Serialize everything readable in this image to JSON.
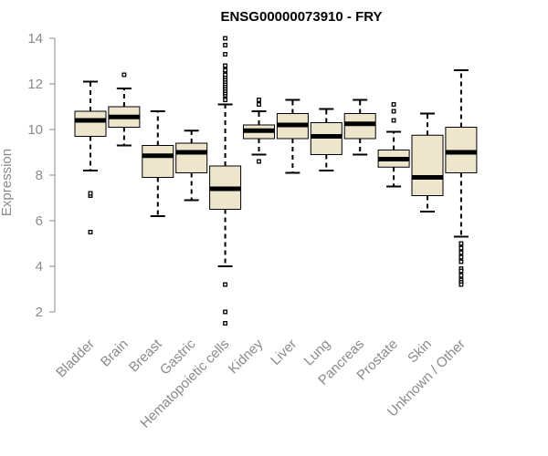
{
  "chart_data": {
    "type": "boxplot",
    "title": "ENSG00000073910 - FRY",
    "xlabel": "",
    "ylabel": "Expression",
    "ylim": [
      1.2,
      14.2
    ],
    "yticks": [
      2,
      4,
      6,
      8,
      10,
      12,
      14
    ],
    "colors": {
      "box_fill": "#ede6cd",
      "stroke": "#000000",
      "axis": "#8a8a8a"
    },
    "categories": [
      "Bladder",
      "Brain",
      "Breast",
      "Gastric",
      "Hematopoietic cells",
      "Kidney",
      "Liver",
      "Lung",
      "Pancreas",
      "Prostate",
      "Skin",
      "Unknown / Other"
    ],
    "boxes": [
      {
        "name": "Bladder",
        "whisker_low": 8.2,
        "q1": 9.7,
        "median": 10.4,
        "q3": 10.8,
        "whisker_high": 12.1,
        "outliers": [
          7.1,
          7.2,
          5.5
        ]
      },
      {
        "name": "Brain",
        "whisker_low": 9.3,
        "q1": 10.1,
        "median": 10.55,
        "q3": 11.0,
        "whisker_high": 11.8,
        "outliers": [
          12.4
        ]
      },
      {
        "name": "Breast",
        "whisker_low": 6.2,
        "q1": 7.9,
        "median": 8.85,
        "q3": 9.3,
        "whisker_high": 10.8,
        "outliers": []
      },
      {
        "name": "Gastric",
        "whisker_low": 6.9,
        "q1": 8.1,
        "median": 9.0,
        "q3": 9.4,
        "whisker_high": 9.95,
        "outliers": []
      },
      {
        "name": "Hematopoietic cells",
        "whisker_low": 4.0,
        "q1": 6.5,
        "median": 7.4,
        "q3": 8.4,
        "whisker_high": 11.1,
        "outliers": [
          11.3,
          11.5,
          11.6,
          11.7,
          11.8,
          11.9,
          12.0,
          12.1,
          12.2,
          12.3,
          12.4,
          12.6,
          12.8,
          13.3,
          13.7,
          14.0,
          3.2,
          2.0,
          1.5
        ]
      },
      {
        "name": "Kidney",
        "whisker_low": 8.9,
        "q1": 9.6,
        "median": 9.95,
        "q3": 10.2,
        "whisker_high": 10.8,
        "outliers": [
          11.1,
          11.3,
          8.6
        ]
      },
      {
        "name": "Liver",
        "whisker_low": 8.1,
        "q1": 9.6,
        "median": 10.2,
        "q3": 10.7,
        "whisker_high": 11.3,
        "outliers": []
      },
      {
        "name": "Lung",
        "whisker_low": 8.2,
        "q1": 8.9,
        "median": 9.7,
        "q3": 10.3,
        "whisker_high": 10.9,
        "outliers": []
      },
      {
        "name": "Pancreas",
        "whisker_low": 8.9,
        "q1": 9.6,
        "median": 10.25,
        "q3": 10.7,
        "whisker_high": 11.3,
        "outliers": []
      },
      {
        "name": "Prostate",
        "whisker_low": 7.5,
        "q1": 8.35,
        "median": 8.7,
        "q3": 9.1,
        "whisker_high": 9.9,
        "outliers": [
          10.4,
          10.8,
          11.1
        ]
      },
      {
        "name": "Skin",
        "whisker_low": 6.4,
        "q1": 7.1,
        "median": 7.9,
        "q3": 9.75,
        "whisker_high": 10.7,
        "outliers": []
      },
      {
        "name": "Unknown / Other",
        "whisker_low": 5.3,
        "q1": 8.1,
        "median": 9.0,
        "q3": 10.1,
        "whisker_high": 12.6,
        "outliers": [
          5.0,
          4.8,
          4.6,
          4.4,
          4.2,
          3.9,
          3.8,
          3.6,
          3.4,
          3.3,
          3.2
        ]
      }
    ]
  }
}
